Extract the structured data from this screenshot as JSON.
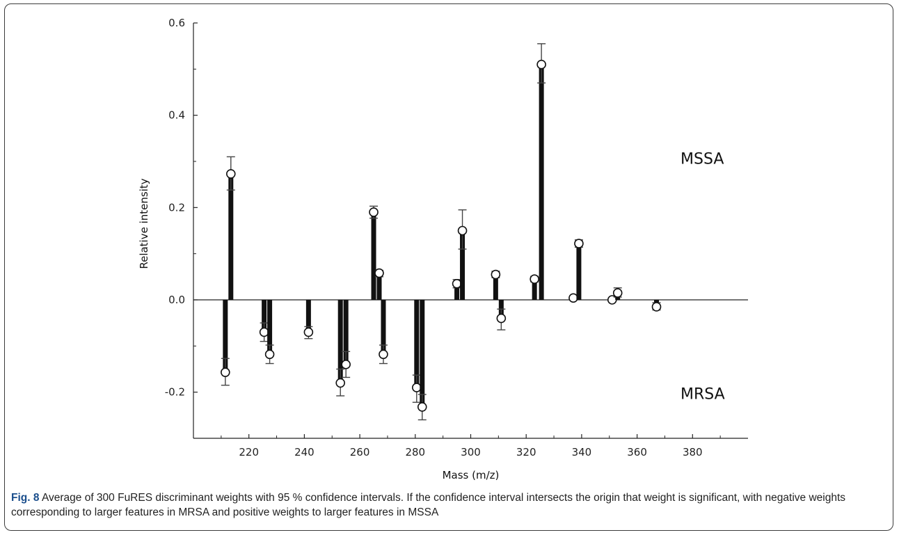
{
  "figure": {
    "caption_id": "Fig. 8",
    "caption_text": "Average of 300 FuRES discriminant weights with 95 % confidence intervals. If the confidence interval intersects the origin that weight is significant, with negative weights corresponding to larger features in MRSA and positive weights to larger features in MSSA"
  },
  "chart_data": {
    "type": "bar",
    "xlabel": "Mass (m/z)",
    "ylabel": "Relative intensity",
    "xlim": [
      200,
      400
    ],
    "ylim": [
      -0.3,
      0.6
    ],
    "x_ticks": [
      220,
      240,
      260,
      280,
      300,
      320,
      340,
      360,
      380
    ],
    "y_ticks": [
      -0.2,
      0.0,
      0.2,
      0.4,
      0.6
    ],
    "y_tick_labels": [
      "-0.2",
      "0.0",
      "0.2",
      "0.4",
      "0.6"
    ],
    "grid": false,
    "annotations": [
      "MSSA",
      "MRSA"
    ],
    "bars": [
      {
        "x": 211.5,
        "y": -0.157,
        "ci": [
          -0.185,
          -0.127
        ]
      },
      {
        "x": 213.5,
        "y": 0.273,
        "ci": [
          0.238,
          0.31
        ]
      },
      {
        "x": 225.5,
        "y": -0.07,
        "ci": [
          -0.09,
          -0.05
        ]
      },
      {
        "x": 227.5,
        "y": -0.118,
        "ci": [
          -0.138,
          -0.098
        ]
      },
      {
        "x": 241.5,
        "y": -0.07,
        "ci": [
          -0.084,
          -0.058
        ]
      },
      {
        "x": 253.0,
        "y": -0.18,
        "ci": [
          -0.208,
          -0.15
        ]
      },
      {
        "x": 255.0,
        "y": -0.14,
        "ci": [
          -0.168,
          -0.112
        ]
      },
      {
        "x": 265.0,
        "y": 0.19,
        "ci": [
          0.177,
          0.203
        ]
      },
      {
        "x": 267.0,
        "y": 0.058,
        "ci": [
          0.05,
          0.064
        ]
      },
      {
        "x": 268.5,
        "y": -0.118,
        "ci": [
          -0.138,
          -0.098
        ]
      },
      {
        "x": 280.5,
        "y": -0.19,
        "ci": [
          -0.222,
          -0.163
        ]
      },
      {
        "x": 282.5,
        "y": -0.232,
        "ci": [
          -0.26,
          -0.205
        ]
      },
      {
        "x": 295.0,
        "y": 0.035,
        "ci": [
          0.026,
          0.044
        ]
      },
      {
        "x": 297.0,
        "y": 0.15,
        "ci": [
          0.11,
          0.195
        ]
      },
      {
        "x": 309.0,
        "y": 0.055,
        "ci": [
          0.048,
          0.062
        ]
      },
      {
        "x": 311.0,
        "y": -0.04,
        "ci": [
          -0.065,
          -0.02
        ]
      },
      {
        "x": 323.0,
        "y": 0.045,
        "ci": [
          0.039,
          0.051
        ]
      },
      {
        "x": 325.5,
        "y": 0.51,
        "ci": [
          0.47,
          0.555
        ]
      },
      {
        "x": 337.0,
        "y": 0.004,
        "ci": [
          0.002,
          0.006
        ]
      },
      {
        "x": 339.0,
        "y": 0.122,
        "ci": [
          0.114,
          0.13
        ]
      },
      {
        "x": 351.0,
        "y": 0.0,
        "ci": [
          -0.002,
          0.002
        ]
      },
      {
        "x": 353.0,
        "y": 0.015,
        "ci": [
          0.006,
          0.026
        ]
      },
      {
        "x": 367.0,
        "y": -0.015,
        "ci": [
          -0.022,
          -0.006
        ]
      }
    ]
  }
}
